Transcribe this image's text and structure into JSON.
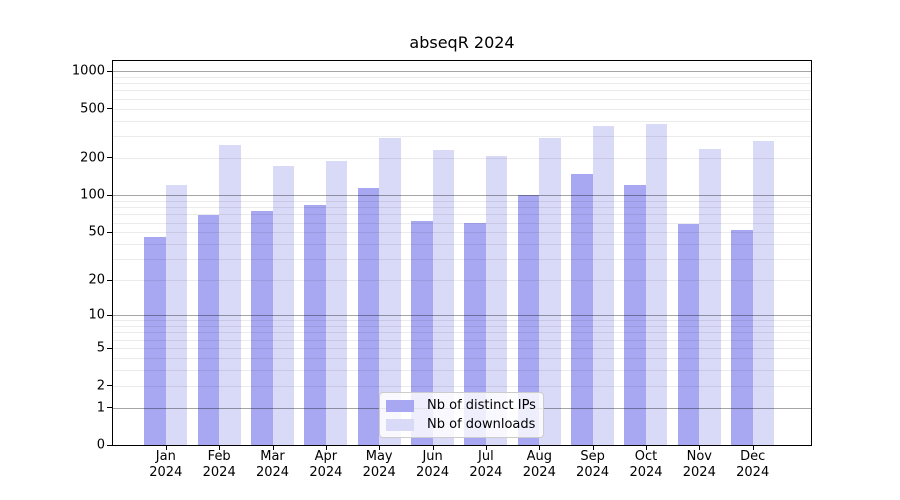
{
  "title": "abseqR 2024",
  "chart_data": {
    "type": "bar",
    "title": "abseqR 2024",
    "categories": [
      "Jan",
      "Feb",
      "Mar",
      "Apr",
      "May",
      "Jun",
      "Jul",
      "Aug",
      "Sep",
      "Oct",
      "Nov",
      "Dec"
    ],
    "x_year_line": "2024",
    "series": [
      {
        "name": "Nb of distinct IPs",
        "color": "#a8a8f2",
        "values": [
          46,
          69,
          75,
          84,
          114,
          62,
          60,
          100,
          148,
          122,
          58,
          52
        ]
      },
      {
        "name": "Nb of downloads",
        "color": "#d9d9f8",
        "values": [
          122,
          256,
          172,
          188,
          289,
          232,
          207,
          288,
          364,
          377,
          237,
          272
        ]
      }
    ],
    "y_axis": {
      "scale": "log10(value+1)",
      "ticks": [
        1000,
        500,
        200,
        100,
        50,
        20,
        10,
        5,
        2,
        1,
        0
      ],
      "top_value": 1200,
      "major_gridlines": [
        1,
        10,
        100,
        1000
      ],
      "minor_gridlines_rule": "2-9 per decade"
    },
    "grid": "horizontal, drawn over bars",
    "legend_position": "lower center"
  },
  "legend": {
    "items": [
      {
        "label": "Nb of distinct IPs"
      },
      {
        "label": "Nb of downloads"
      }
    ]
  }
}
